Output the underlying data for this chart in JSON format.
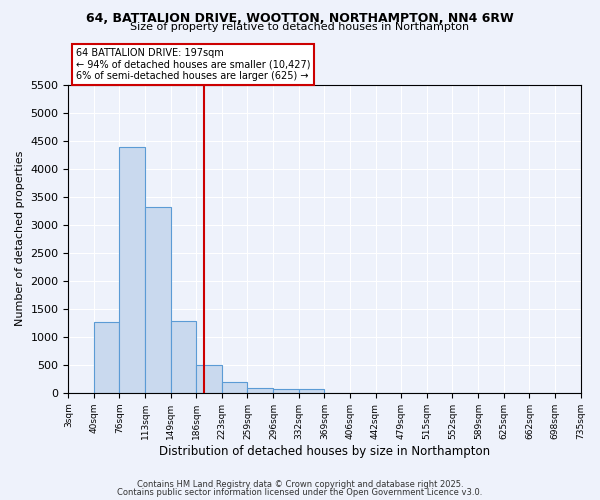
{
  "title1": "64, BATTALION DRIVE, WOOTTON, NORTHAMPTON, NN4 6RW",
  "title2": "Size of property relative to detached houses in Northampton",
  "xlabel": "Distribution of detached houses by size in Northampton",
  "ylabel": "Number of detached properties",
  "bin_edges": [
    3,
    40,
    76,
    113,
    149,
    186,
    223,
    259,
    296,
    332,
    369,
    406,
    442,
    479,
    515,
    552,
    589,
    625,
    662,
    698,
    735
  ],
  "bar_heights": [
    0,
    1270,
    4380,
    3310,
    1290,
    500,
    200,
    80,
    60,
    60,
    0,
    0,
    0,
    0,
    0,
    0,
    0,
    0,
    0,
    0
  ],
  "bar_color": "#c9d9ee",
  "bar_edge_color": "#5b9bd5",
  "vline_x": 197,
  "vline_color": "#cc0000",
  "ylim": [
    0,
    5500
  ],
  "yticks": [
    0,
    500,
    1000,
    1500,
    2000,
    2500,
    3000,
    3500,
    4000,
    4500,
    5000,
    5500
  ],
  "annotation_title": "64 BATTALION DRIVE: 197sqm",
  "annotation_line1": "← 94% of detached houses are smaller (10,427)",
  "annotation_line2": "6% of semi-detached houses are larger (625) →",
  "annotation_box_color": "#cc0000",
  "background_color": "#eef2fb",
  "grid_color": "#ffffff",
  "footer1": "Contains HM Land Registry data © Crown copyright and database right 2025.",
  "footer2": "Contains public sector information licensed under the Open Government Licence v3.0."
}
